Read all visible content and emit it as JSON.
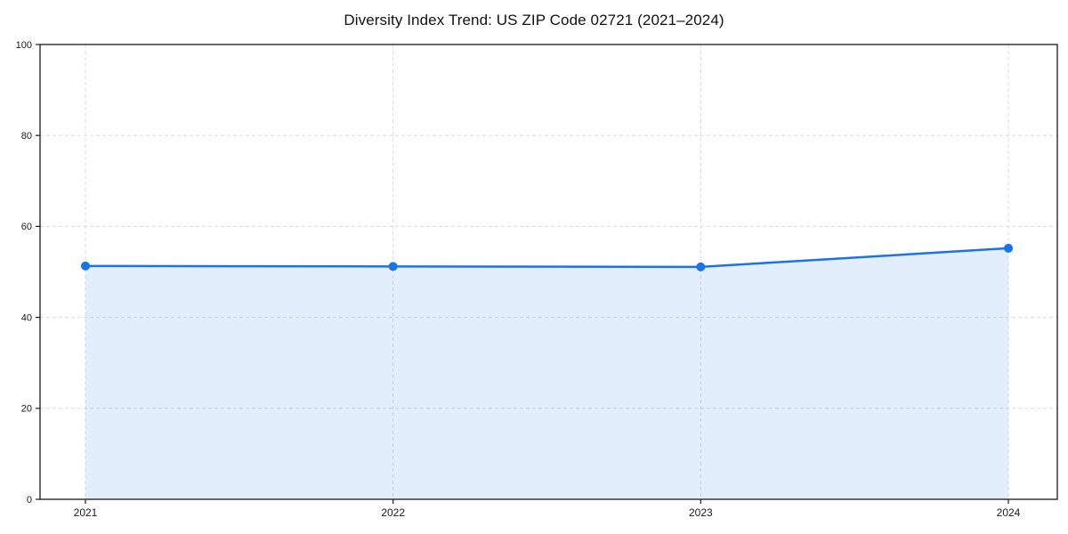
{
  "page": {
    "background_color": "#ffffff"
  },
  "chart_data": {
    "type": "area",
    "title": "Diversity Index Trend: US ZIP Code 02721 (2021–2024)",
    "x": [
      "2021",
      "2022",
      "2023",
      "2024"
    ],
    "series": [
      {
        "name": "Diversity Index",
        "values": [
          51.3,
          51.2,
          51.1,
          55.2
        ]
      }
    ],
    "xlabel": "",
    "ylabel": "",
    "ylim": [
      0,
      100
    ],
    "yticks": [
      0,
      20,
      40,
      60,
      80,
      100
    ],
    "grid": "dashed both axes",
    "legend_position": "none",
    "marker": "circle",
    "colors": {
      "line": "#1a73e8",
      "fill": "rgba(26,115,232,0.12)",
      "grid": "#dcdcdc",
      "axis": "#1a1a1a",
      "tick_label": "#1a1a1a",
      "title": "#111111"
    }
  }
}
